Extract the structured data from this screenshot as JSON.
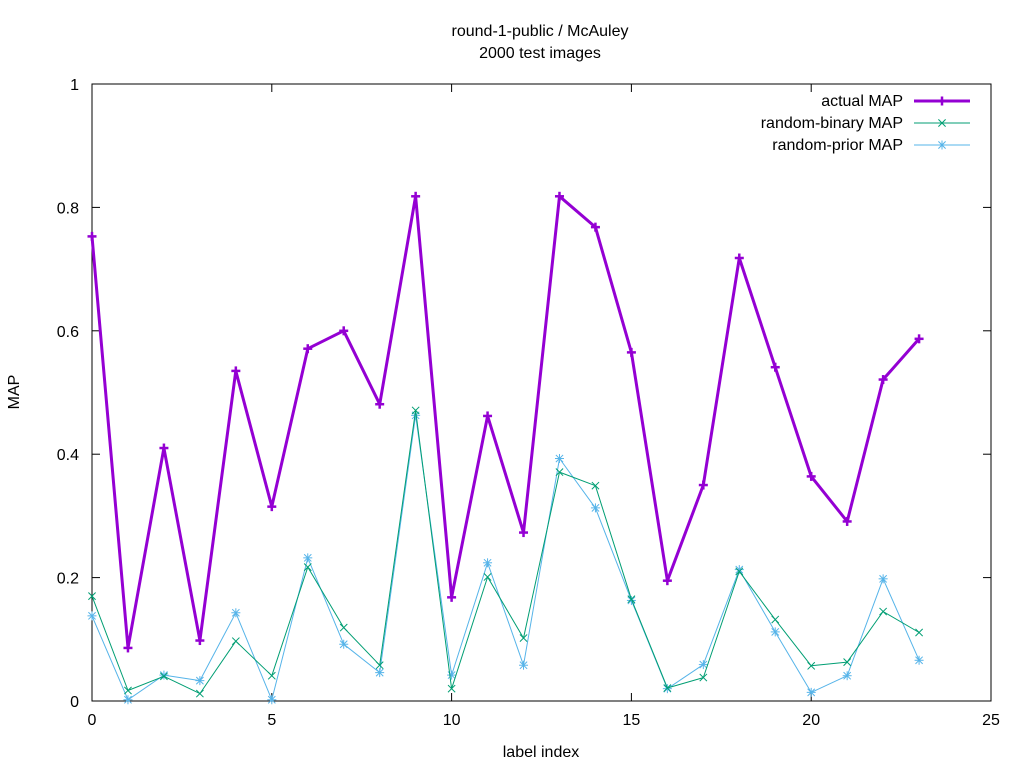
{
  "chart_data": {
    "type": "line",
    "title": "round-1-public / McAuley",
    "subtitle": "2000 test images",
    "xlabel": "label index",
    "ylabel": "MAP",
    "xlim": [
      0,
      25
    ],
    "ylim": [
      0,
      1
    ],
    "xticks": [
      0,
      5,
      10,
      15,
      20,
      25
    ],
    "yticks": [
      0,
      0.2,
      0.4,
      0.6,
      0.8,
      1
    ],
    "xtick_labels": [
      "0",
      "5",
      "10",
      "15",
      "20",
      "25"
    ],
    "ytick_labels": [
      "0",
      "0.2",
      "0.4",
      "0.6",
      "0.8",
      "1"
    ],
    "grid": false,
    "legend_position": "top-right",
    "x": [
      0,
      1,
      2,
      3,
      4,
      5,
      6,
      7,
      8,
      9,
      10,
      11,
      12,
      13,
      14,
      15,
      16,
      17,
      18,
      19,
      20,
      21,
      22,
      23
    ],
    "series": [
      {
        "name": "actual MAP",
        "color": "#9400d3",
        "marker": "plus",
        "values": [
          0.753,
          0.086,
          0.41,
          0.098,
          0.535,
          0.315,
          0.571,
          0.6,
          0.481,
          0.818,
          0.168,
          0.462,
          0.273,
          0.818,
          0.768,
          0.565,
          0.195,
          0.35,
          0.718,
          0.541,
          0.364,
          0.291,
          0.521,
          0.587
        ]
      },
      {
        "name": "random-binary MAP",
        "color": "#009e73",
        "marker": "cross",
        "values": [
          0.17,
          0.017,
          0.04,
          0.012,
          0.097,
          0.041,
          0.217,
          0.119,
          0.058,
          0.471,
          0.02,
          0.201,
          0.102,
          0.371,
          0.349,
          0.165,
          0.021,
          0.038,
          0.21,
          0.132,
          0.057,
          0.063,
          0.145,
          0.111
        ]
      },
      {
        "name": "random-prior MAP",
        "color": "#56b4e9",
        "marker": "star",
        "values": [
          0.138,
          0.002,
          0.042,
          0.033,
          0.143,
          0.002,
          0.232,
          0.092,
          0.046,
          0.463,
          0.042,
          0.224,
          0.058,
          0.393,
          0.313,
          0.163,
          0.02,
          0.059,
          0.213,
          0.112,
          0.014,
          0.041,
          0.198,
          0.066
        ]
      }
    ]
  }
}
